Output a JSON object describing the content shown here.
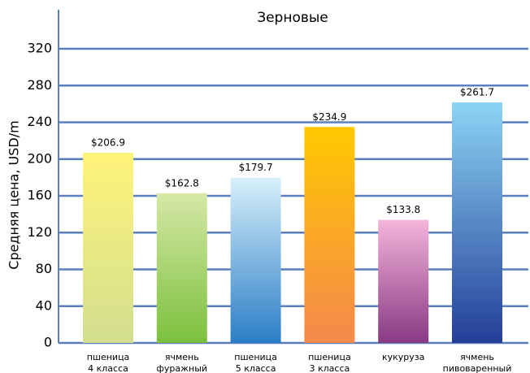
{
  "chart_data": {
    "type": "bar",
    "title": "Зерновые",
    "y_label": "Средняя цена, USD/m",
    "categories": [
      [
        "пшеница",
        "4 класса"
      ],
      [
        "ячмень",
        "фуражный"
      ],
      [
        "пшеница",
        "5 класса"
      ],
      [
        "пшеница",
        "3 класса"
      ],
      [
        "кукуруза"
      ],
      [
        "ячмень",
        "пивоваренный"
      ]
    ],
    "values": [
      206.9,
      162.8,
      179.7,
      234.9,
      133.8,
      261.7
    ],
    "value_labels": [
      "$206.9",
      "$162.8",
      "$179.7",
      "$234.9",
      "$133.8",
      "$261.7"
    ],
    "colors": [
      [
        "#fff47a",
        "#d2de8e"
      ],
      [
        "#d6e8a6",
        "#7cc03e"
      ],
      [
        "#d8f0fb",
        "#2a7dc6"
      ],
      [
        "#ffc800",
        "#f5884c"
      ],
      [
        "#f4b4da",
        "#883a84"
      ],
      [
        "#8cd4f4",
        "#243e98"
      ]
    ],
    "ylim": [
      0,
      320
    ],
    "yticks": [
      0,
      40,
      80,
      120,
      160,
      200,
      240,
      280,
      320
    ],
    "grid": true
  }
}
